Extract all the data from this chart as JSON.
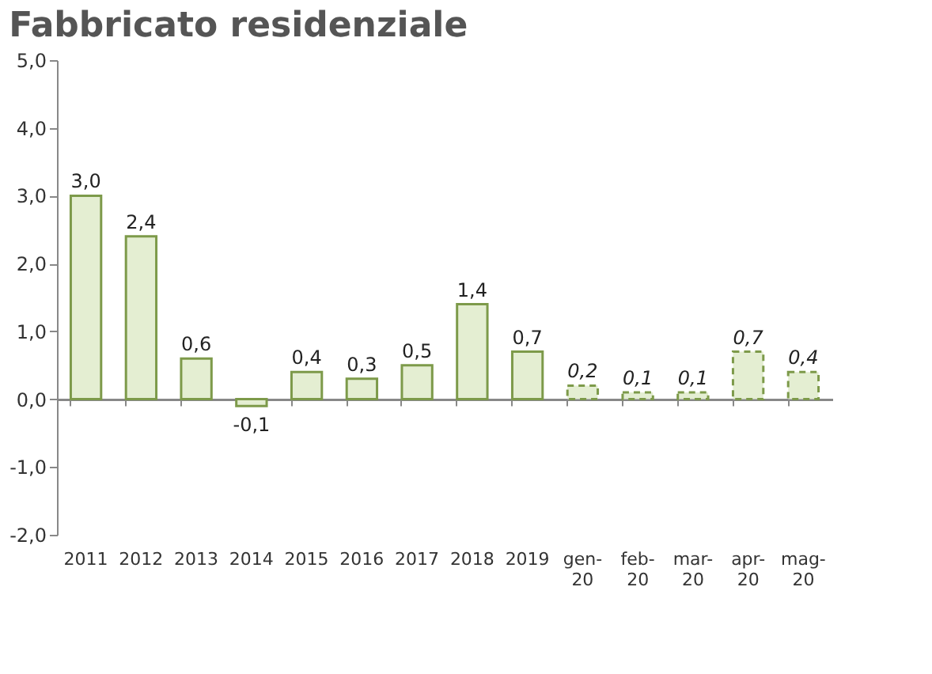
{
  "chart_data": {
    "type": "bar",
    "title": "Fabbricato residenziale",
    "categories": [
      "2011",
      "2012",
      "2013",
      "2014",
      "2015",
      "2016",
      "2017",
      "2018",
      "2019",
      "gen-20",
      "feb-20",
      "mar-20",
      "apr-20",
      "mag-20"
    ],
    "series": [
      {
        "color": "#e4eed2",
        "line_style": "solid",
        "values": [
          3.0,
          2.4,
          0.6,
          -0.1,
          0.4,
          0.3,
          0.5,
          1.4,
          0.7,
          null,
          null,
          null,
          null,
          null
        ],
        "value_labels": [
          "3,0",
          "2,4",
          "0,6",
          "-0,1",
          "0,4",
          "0,3",
          "0,5",
          "1,4",
          "0,7",
          null,
          null,
          null,
          null,
          null
        ]
      },
      {
        "color": "#e4eed2",
        "line_style": "dashed",
        "values": [
          null,
          null,
          null,
          null,
          null,
          null,
          null,
          null,
          null,
          0.2,
          0.1,
          0.1,
          0.7,
          0.4
        ],
        "value_labels": [
          null,
          null,
          null,
          null,
          null,
          null,
          null,
          null,
          null,
          "0,2",
          "0,1",
          "0,1",
          "0,7",
          "0,4"
        ]
      }
    ],
    "ylim": [
      -2.0,
      5.0
    ],
    "yticks": [
      {
        "value": -2,
        "label": "-2,0"
      },
      {
        "value": -1,
        "label": "-1,0"
      },
      {
        "value": 0,
        "label": "0,0"
      },
      {
        "value": 1,
        "label": "1,0"
      },
      {
        "value": 2,
        "label": "2,0"
      },
      {
        "value": 3,
        "label": "3,0"
      },
      {
        "value": 4,
        "label": "4,0"
      },
      {
        "value": 5,
        "label": "5,0"
      }
    ]
  }
}
